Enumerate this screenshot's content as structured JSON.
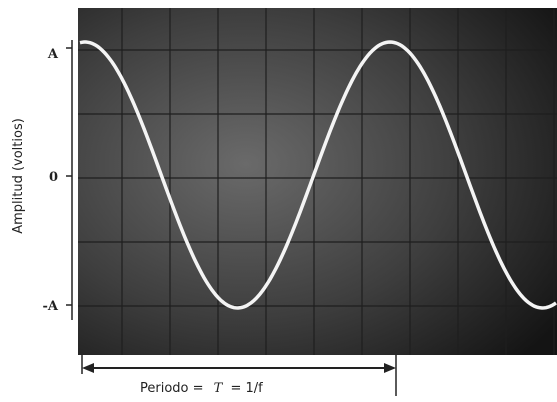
{
  "axis": {
    "label": "Amplitud (voltios)",
    "ticks": [
      "A",
      "0",
      "-A"
    ]
  },
  "caption": {
    "text": "Periodo =",
    "symbol": "T",
    "formula": "= 1/f"
  }
}
